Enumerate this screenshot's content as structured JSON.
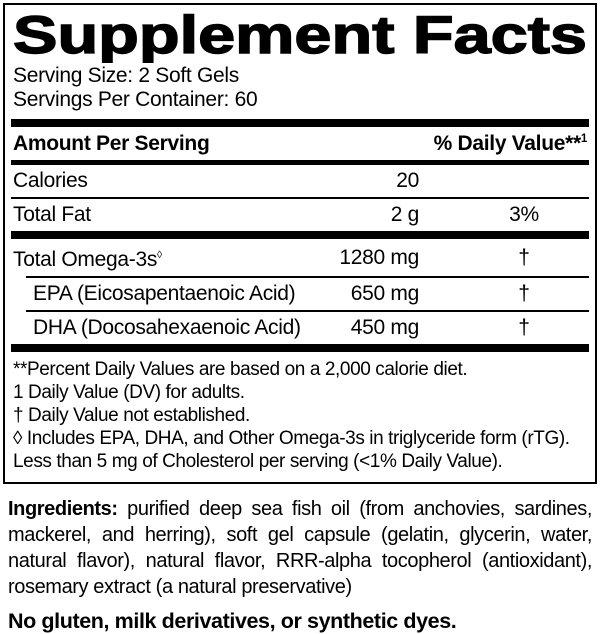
{
  "panel": {
    "title": "Supplement Facts",
    "serving_size": "Serving Size: 2 Soft Gels",
    "servings_per_container": "Servings Per Container: 60",
    "table": {
      "amount_header": "Amount Per Serving",
      "dv_header": "% Daily Value**",
      "dv_header_sup": "1",
      "rows": [
        {
          "label": "Calories",
          "amount": "20",
          "dv": ""
        },
        {
          "label": "Total Fat",
          "amount": "2 g",
          "dv": "3%"
        },
        {
          "label": "Total Omega-3s",
          "label_sup": "◊",
          "amount": "1280 mg",
          "dv": "†"
        },
        {
          "label": "EPA (Eicosapentaenoic Acid)",
          "amount": "650 mg",
          "dv": "†"
        },
        {
          "label": "DHA (Docosahexaenoic Acid)",
          "amount": "450 mg",
          "dv": "†"
        }
      ]
    },
    "footnotes": [
      "**Percent Daily Values are based on a 2,000 calorie diet.",
      "1 Daily Value (DV) for adults.",
      "† Daily Value not established.",
      "◊ Includes EPA, DHA, and Other Omega-3s in triglyceride form (rTG).",
      "Less than 5 mg of Cholesterol per serving (<1% Daily Value)."
    ]
  },
  "ingredients": {
    "label": "Ingredients:",
    "text": " purified deep sea fish oil (from anchovies, sardines, mackerel, and herring), soft gel capsule (gelatin, glycerin, water, natural flavor), natural flavor, RRR-alpha tocopherol (antioxidant), rosemary extract (a natural preservative)"
  },
  "allergen_statement": "No gluten, milk derivatives, or synthetic dyes.",
  "colors": {
    "text": "#000000",
    "background": "#ffffff"
  }
}
